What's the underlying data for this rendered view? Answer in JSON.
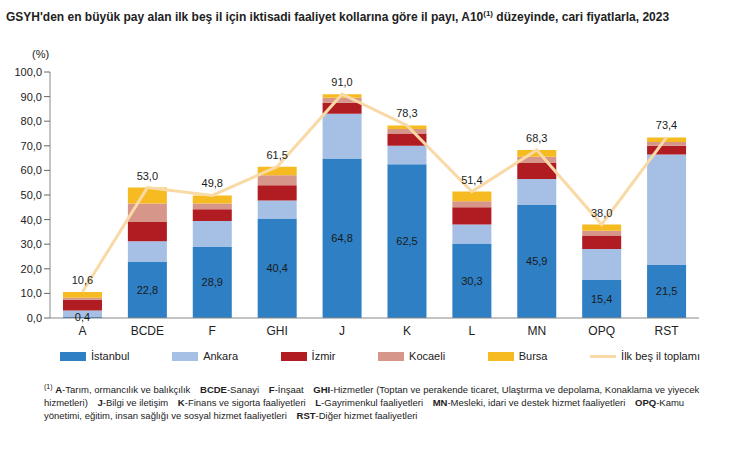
{
  "chart_data": {
    "type": "bar",
    "title": "GSYH'den en büyük pay alan ilk beş il için iktisadi faaliyet kollarına göre il payı, A10(1) düzeyinde, cari fiyatlarla, 2023",
    "y_label": "(%)",
    "stacked": true,
    "grid": false,
    "legend": "bottom",
    "categories": [
      "A",
      "BCDE",
      "F",
      "GHI",
      "J",
      "K",
      "L",
      "MN",
      "OPQ",
      "RST"
    ],
    "ylim": [
      0,
      100
    ],
    "yticks": [
      {
        "value": 0,
        "label": "0,0"
      },
      {
        "value": 10,
        "label": "10,0"
      },
      {
        "value": 20,
        "label": "20,0"
      },
      {
        "value": 30,
        "label": "30,0"
      },
      {
        "value": 40,
        "label": "40,0"
      },
      {
        "value": 50,
        "label": "50,0"
      },
      {
        "value": 60,
        "label": "60,0"
      },
      {
        "value": 70,
        "label": "70,0"
      },
      {
        "value": 80,
        "label": "80,0"
      },
      {
        "value": 90,
        "label": "90,0"
      },
      {
        "value": 100,
        "label": "100,0"
      }
    ],
    "series": [
      {
        "name": "İstanbul",
        "type": "bar",
        "color": "#2e7fc4",
        "data_labels": true,
        "values": [
          0.4,
          22.8,
          28.9,
          40.4,
          64.8,
          62.5,
          30.3,
          45.9,
          15.4,
          21.5
        ],
        "value_labels": [
          "0,4",
          "22,8",
          "28,9",
          "40,4",
          "64,8",
          "62,5",
          "30,3",
          "45,9",
          "15,4",
          "21,5"
        ]
      },
      {
        "name": "Ankara",
        "type": "bar",
        "color": "#a5c0e4",
        "values": [
          2.6,
          8.4,
          10.5,
          7.4,
          18.2,
          7.5,
          7.7,
          10.6,
          12.6,
          45.0
        ]
      },
      {
        "name": "İzmir",
        "type": "bar",
        "color": "#b01c22",
        "values": [
          4.4,
          7.8,
          4.8,
          6.2,
          4.5,
          5.0,
          7.0,
          6.5,
          5.5,
          3.5
        ]
      },
      {
        "name": "Kocaeli",
        "type": "bar",
        "color": "#d6968a",
        "values": [
          0.8,
          7.5,
          2.3,
          4.0,
          2.0,
          1.8,
          2.5,
          2.5,
          2.0,
          1.5
        ]
      },
      {
        "name": "Bursa",
        "type": "bar",
        "color": "#f7bb22",
        "values": [
          2.4,
          6.5,
          3.3,
          3.5,
          1.5,
          1.5,
          3.9,
          2.8,
          2.5,
          1.9
        ]
      },
      {
        "name": "İlk beş il toplamı",
        "type": "line",
        "color": "#f9d9a6",
        "data_labels": true,
        "values": [
          10.6,
          53.0,
          49.8,
          61.5,
          91.0,
          78.3,
          51.4,
          68.3,
          38.0,
          73.4
        ],
        "value_labels": [
          "10,6",
          "53,0",
          "49,8",
          "61,5",
          "91,0",
          "78,3",
          "51,4",
          "68,3",
          "38,0",
          "73,4"
        ]
      }
    ],
    "footnote": {
      "marker": "(1)",
      "separator": "-",
      "items": [
        {
          "code": "A",
          "text": "Tarım, ormancılık ve balıkçılık"
        },
        {
          "code": "BCDE",
          "text": "Sanayi"
        },
        {
          "code": "F",
          "text": "İnşaat"
        },
        {
          "code": "GHI",
          "text": "Hizmetler (Toptan ve perakende ticaret, Ulaştırma ve depolama, Konaklama ve yiyecek hizmetleri)"
        },
        {
          "code": "J",
          "text": "Bilgi ve iletişim"
        },
        {
          "code": "K",
          "text": "Finans ve sigorta faaliyetleri"
        },
        {
          "code": "L",
          "text": "Gayrimenkul faaliyetleri"
        },
        {
          "code": "MN",
          "text": "Mesleki, idari ve destek hizmet faaliyetleri"
        },
        {
          "code": "OPQ",
          "text": "Kamu yönetimi, eğitim, insan sağlığı ve sosyal hizmet faaliyetleri"
        },
        {
          "code": "RST",
          "text": "Diğer hizmet faaliyetleri"
        }
      ]
    }
  }
}
